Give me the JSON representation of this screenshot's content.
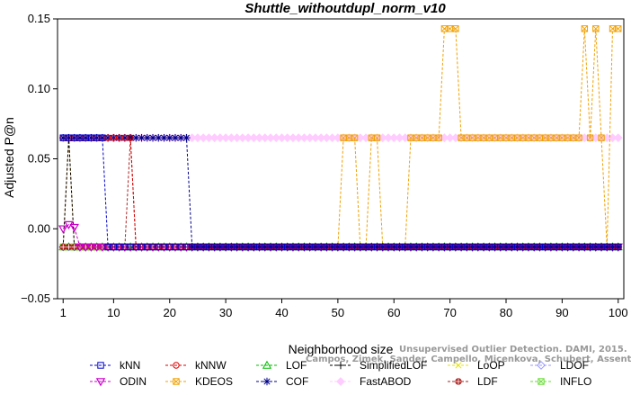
{
  "chart_data": {
    "type": "line",
    "title": "Shuttle_withoutdupl_norm_v10",
    "xlabel": "Neighborhood size",
    "ylabel": "Adjusted P@n",
    "xlim": [
      0,
      101
    ],
    "ylim": [
      -0.05,
      0.15
    ],
    "xticks": [
      1,
      10,
      20,
      30,
      40,
      50,
      60,
      70,
      80,
      90,
      100
    ],
    "yticks": [
      -0.05,
      0.0,
      0.05,
      0.1,
      0.15
    ],
    "ytick_labels": [
      "−0.05",
      "0.00",
      "0.05",
      "0.10",
      "0.15"
    ],
    "grid": false,
    "legend_position": "bottom",
    "credit": [
      "Unsupervised Outlier Detection. DAMI, 2015.",
      "Campos, Zimek, Sander, Campello, Micenkova, Schubert, Assent, Houle"
    ],
    "series": [
      {
        "name": "kNN",
        "color": "#0000cc",
        "marker": "square",
        "segments": [
          {
            "from": 1,
            "to": 8,
            "value": 0.065
          },
          {
            "from": 9,
            "to": 100,
            "value": -0.013
          }
        ]
      },
      {
        "name": "kNNW",
        "color": "#dd0000",
        "marker": "circle",
        "segments": [
          {
            "from": 1,
            "to": 13,
            "value": 0.065
          },
          {
            "from": 14,
            "to": 100,
            "value": -0.013
          }
        ]
      },
      {
        "name": "LOF",
        "color": "#00bb00",
        "marker": "triangle-up",
        "segments": [
          {
            "from": 1,
            "to": 100,
            "value": -0.013
          }
        ]
      },
      {
        "name": "SimplifiedLOF",
        "color": "#000000",
        "marker": "plus",
        "segments": [
          {
            "from": 1,
            "to": 1,
            "value": -0.013
          },
          {
            "from": 2,
            "to": 2,
            "value": 0.065
          },
          {
            "from": 3,
            "to": 100,
            "value": -0.013
          }
        ]
      },
      {
        "name": "LoOP",
        "color": "#e6e600",
        "marker": "x",
        "segments": [
          {
            "from": 1,
            "to": 100,
            "value": -0.013
          }
        ]
      },
      {
        "name": "LDOF",
        "color": "#9999ff",
        "marker": "diamond",
        "segments": [
          {
            "from": 1,
            "to": 100,
            "value": -0.013
          }
        ]
      },
      {
        "name": "ODIN",
        "color": "#cc00cc",
        "marker": "triangle-down",
        "points": [
          [
            1,
            0.0
          ],
          [
            2,
            0.003
          ],
          [
            3,
            0.001
          ],
          [
            4,
            -0.013
          ],
          [
            5,
            -0.013
          ],
          [
            6,
            -0.013
          ],
          [
            7,
            -0.013
          ],
          [
            8,
            -0.013
          ],
          [
            9,
            -0.013
          ],
          [
            10,
            -0.013
          ]
        ],
        "tail": {
          "from": 11,
          "to": 100,
          "value": -0.013
        }
      },
      {
        "name": "KDEOS",
        "color": "#f0a000",
        "marker": "square-x",
        "special": "kdeos"
      },
      {
        "name": "COF",
        "color": "#000088",
        "marker": "asterisk",
        "segments": [
          {
            "from": 1,
            "to": 23,
            "value": 0.065
          },
          {
            "from": 24,
            "to": 100,
            "value": -0.013
          }
        ]
      },
      {
        "name": "FastABOD",
        "color": "#ffccff",
        "marker": "diamond-filled",
        "segments": [
          {
            "from": 1,
            "to": 1,
            "value": -0.013
          },
          {
            "from": 2,
            "to": 100,
            "value": 0.065
          }
        ]
      },
      {
        "name": "LDF",
        "color": "#aa2222",
        "marker": "circle-plus",
        "segments": [
          {
            "from": 1,
            "to": 12,
            "value": -0.013
          },
          {
            "from": 13,
            "to": 13,
            "value": 0.065
          },
          {
            "from": 14,
            "to": 100,
            "value": -0.013
          }
        ]
      },
      {
        "name": "INFLO",
        "color": "#66dd33",
        "marker": "square-x",
        "segments": [
          {
            "from": 1,
            "to": 8,
            "value": -0.013
          },
          {
            "from": 9,
            "to": 100,
            "value": -0.013
          }
        ]
      }
    ],
    "kdeos_high": [
      69,
      70,
      71,
      94,
      96,
      99,
      100
    ],
    "kdeos_mid_ranges": [
      [
        51,
        53
      ],
      [
        56,
        57
      ],
      [
        63,
        68
      ],
      [
        72,
        93
      ],
      [
        95,
        95
      ],
      [
        97,
        97
      ]
    ],
    "kdeos_high_value": 0.143,
    "kdeos_mid_value": 0.065,
    "kdeos_low_value": -0.013
  }
}
